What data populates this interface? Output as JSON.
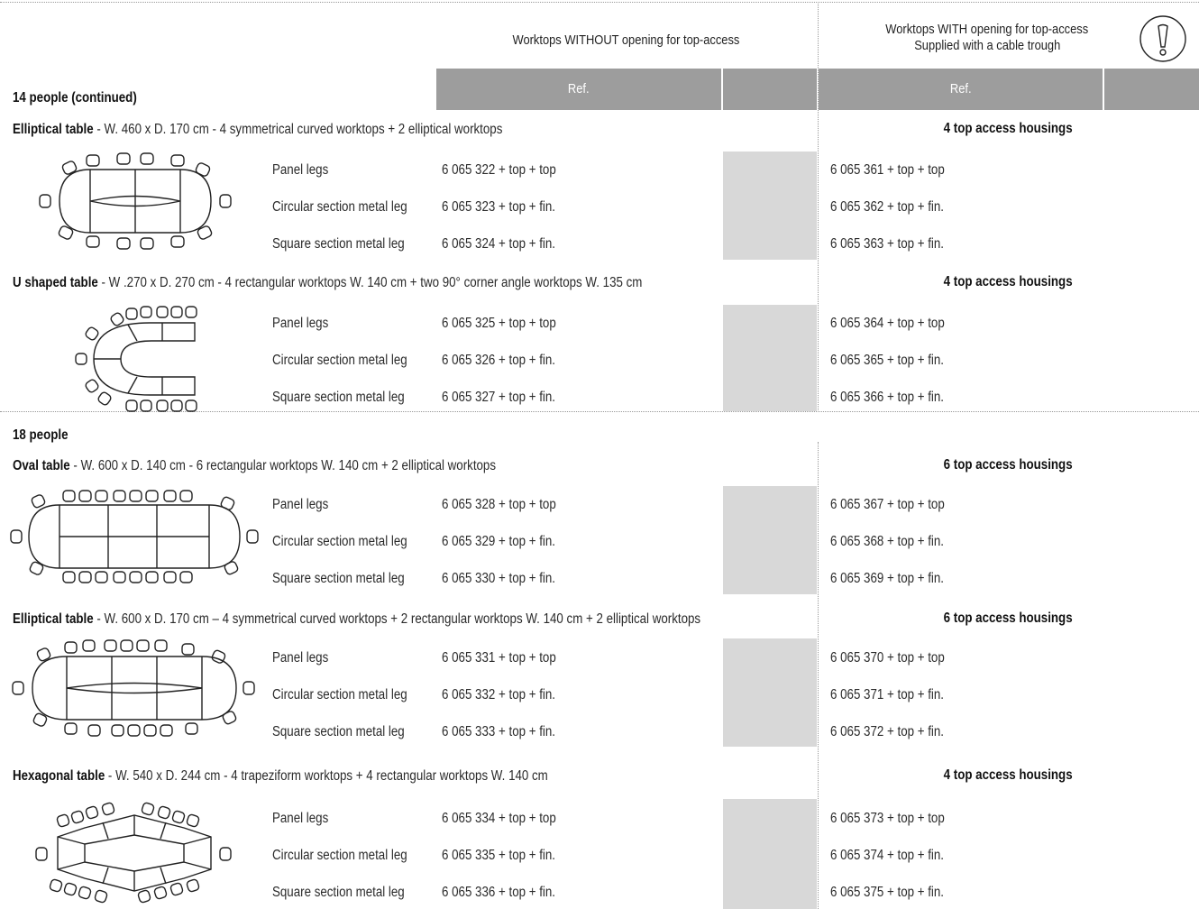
{
  "header": {
    "without_title": "Worktops WITHOUT opening for top-access",
    "with_title_line1": "Worktops WITH opening for top-access",
    "with_title_line2": "Supplied with a cable trough",
    "ref_left": "Ref.",
    "ref_right": "Ref.",
    "warning_icon": "exclamation-circle-icon"
  },
  "sections": [
    {
      "title": "14 people (continued)",
      "tables": [
        {
          "name": "Elliptical table",
          "spec": " - W. 460 x D. 170 cm - 4 symmetrical curved worktops + 2 elliptical worktops",
          "housings": "4 top access housings",
          "icon": "elliptical-table-14-icon",
          "rows": [
            {
              "leg": "Panel legs",
              "ref_without": "6 065 322 + top + top",
              "ref_with": "6 065 361 + top + top"
            },
            {
              "leg": "Circular section metal leg",
              "ref_without": "6 065 323 + top + fin.",
              "ref_with": "6 065 362 + top + fin."
            },
            {
              "leg": "Square section metal leg",
              "ref_without": "6 065 324 + top + fin.",
              "ref_with": "6 065 363 + top + fin."
            }
          ]
        },
        {
          "name": "U shaped table",
          "spec": " - W .270 x D. 270 cm - 4 rectangular worktops W. 140 cm + two 90° corner angle worktops W. 135 cm",
          "housings": "4 top access housings",
          "icon": "u-shaped-table-icon",
          "rows": [
            {
              "leg": "Panel legs",
              "ref_without": "6 065 325 + top + top",
              "ref_with": "6 065 364 + top + top"
            },
            {
              "leg": "Circular section metal leg",
              "ref_without": "6 065 326 + top + fin.",
              "ref_with": "6 065 365 + top + fin."
            },
            {
              "leg": "Square section metal leg",
              "ref_without": "6 065 327 + top + fin.",
              "ref_with": "6 065 366 + top + fin."
            }
          ]
        }
      ]
    },
    {
      "title": "18 people",
      "tables": [
        {
          "name": "Oval table",
          "spec": " - W. 600 x D. 140 cm - 6 rectangular worktops W. 140 cm + 2 elliptical worktops",
          "housings": "6 top access housings",
          "icon": "oval-table-18-icon",
          "rows": [
            {
              "leg": "Panel legs",
              "ref_without": "6 065 328 + top + top",
              "ref_with": "6 065 367 + top + top"
            },
            {
              "leg": "Circular section metal leg",
              "ref_without": "6 065 329 + top + fin.",
              "ref_with": "6 065 368 + top + fin."
            },
            {
              "leg": "Square section metal leg",
              "ref_without": "6 065 330 + top + fin.",
              "ref_with": "6 065 369 + top + fin."
            }
          ]
        },
        {
          "name": "Elliptical table",
          "spec": " - W. 600 x D. 170 cm – 4 symmetrical curved worktops + 2 rectangular worktops W. 140 cm + 2 elliptical worktops",
          "housings": "6 top access housings",
          "icon": "elliptical-table-18-icon",
          "rows": [
            {
              "leg": "Panel legs",
              "ref_without": "6 065 331 + top + top",
              "ref_with": "6 065 370 + top + top"
            },
            {
              "leg": "Circular section metal leg",
              "ref_without": "6 065 332 + top + fin.",
              "ref_with": "6 065 371 + top + fin."
            },
            {
              "leg": "Square section metal leg",
              "ref_without": "6 065 333 + top + fin.",
              "ref_with": "6 065 372 + top + fin."
            }
          ]
        },
        {
          "name": "Hexagonal table",
          "spec": " - W. 540 x D. 244 cm - 4 trapeziform worktops + 4 rectangular worktops W. 140 cm",
          "housings": "4 top access housings",
          "icon": "hexagonal-table-icon",
          "rows": [
            {
              "leg": "Panel legs",
              "ref_without": "6 065 334 + top + top",
              "ref_with": "6 065 373 + top + top"
            },
            {
              "leg": "Circular section metal leg",
              "ref_without": "6 065 335 + top + fin.",
              "ref_with": "6 065 374 + top + fin."
            },
            {
              "leg": "Square section metal leg",
              "ref_without": "6 065 336 + top + fin.",
              "ref_with": "6 065 375 + top + fin."
            }
          ]
        }
      ]
    }
  ],
  "colors": {
    "ref_header_bg": "#9d9d9d",
    "empty_column_bg": "#d8d8d8",
    "text": "#2a2a2a"
  }
}
